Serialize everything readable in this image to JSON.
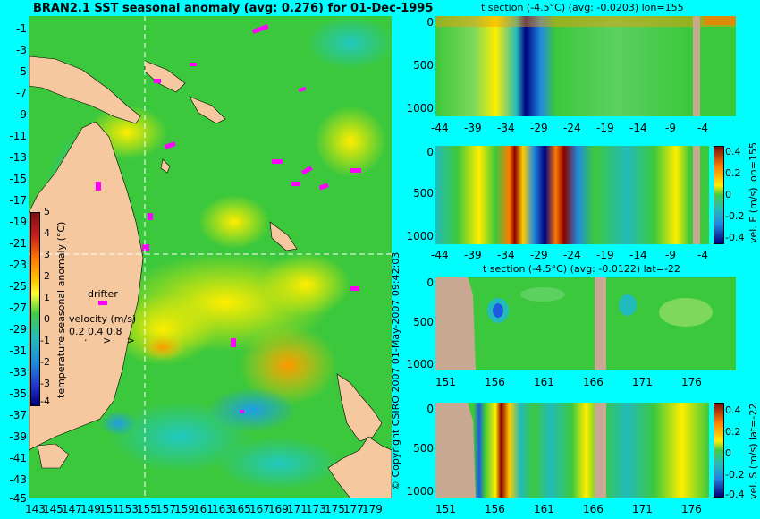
{
  "map": {
    "title": "BRAN2.1 SST seasonal anomaly (avg: 0.276) for 01-Dec-1995",
    "lat_ticks": [
      "-1",
      "-3",
      "-5",
      "-7",
      "-9",
      "-11",
      "-13",
      "-15",
      "-17",
      "-19",
      "-21",
      "-23",
      "-25",
      "-27",
      "-29",
      "-31",
      "-33",
      "-35",
      "-37",
      "-39",
      "-41",
      "-43",
      "-45"
    ],
    "lon_ticks": [
      "143",
      "145",
      "147",
      "149",
      "151",
      "153",
      "155",
      "157",
      "159",
      "161",
      "163",
      "165",
      "167",
      "169",
      "171",
      "173",
      "175",
      "177",
      "179"
    ],
    "colorbar_label": "temperature seasonal anomaly (°C)",
    "colorbar_ticks": [
      "5",
      "4",
      "3",
      "2",
      "1",
      "0",
      "-1",
      "-2",
      "-3",
      "-4"
    ],
    "drifter_label": "drifter",
    "velocity_label": "velocity (m/s)",
    "velocity_scale": "0.2 0.4 0.8"
  },
  "copyright": "© Copyright CSIRO 2007  01-May-2007 09:42:03",
  "panels": {
    "p1": {
      "title": "t section (-4.5°C) (avg: -0.0203) lon=155",
      "y_ticks": [
        "0",
        "500",
        "1000"
      ],
      "x_ticks": [
        "-44",
        "-39",
        "-34",
        "-29",
        "-24",
        "-19",
        "-14",
        "-9",
        "-4"
      ]
    },
    "p2": {
      "y_ticks": [
        "0",
        "500",
        "1000"
      ],
      "x_ticks": [
        "-44",
        "-39",
        "-34",
        "-29",
        "-24",
        "-19",
        "-14",
        "-9",
        "-4"
      ],
      "cb_ticks": [
        "0.4",
        "0.2",
        "0",
        "-0.2",
        "-0.4"
      ],
      "cb_label": "vel. E (m/s) lon=155"
    },
    "p3": {
      "title": "t section (-4.5°C) (avg: -0.0122) lat=-22",
      "y_ticks": [
        "0",
        "500",
        "1000"
      ],
      "x_ticks": [
        "151",
        "156",
        "161",
        "166",
        "171",
        "176"
      ]
    },
    "p4": {
      "y_ticks": [
        "0",
        "500",
        "1000"
      ],
      "x_ticks": [
        "151",
        "156",
        "161",
        "166",
        "171",
        "176"
      ],
      "cb_ticks": [
        "0.4",
        "0.2",
        "0",
        "-0.2",
        "-0.4"
      ],
      "cb_label": "vel. S (m/s) lat=-22"
    }
  },
  "chart_data": [
    {
      "type": "heatmap",
      "title": "BRAN2.1 SST seasonal anomaly (avg: 0.276) for 01-Dec-1995",
      "xlim": [
        142,
        180
      ],
      "ylim": [
        -45,
        0
      ],
      "zlim": [
        -4,
        5
      ],
      "section_lines": {
        "lon": 155,
        "lat": -22
      }
    },
    {
      "type": "heatmap",
      "title": "t section (-4.5°C) (avg: -0.0203) lon=155",
      "xlim": [
        -45,
        0
      ],
      "ylim": [
        1050,
        0
      ]
    },
    {
      "type": "heatmap",
      "xlim": [
        -45,
        0
      ],
      "ylim": [
        1050,
        0
      ],
      "zlim": [
        -0.4,
        0.4
      ],
      "colorbar_label": "vel. E (m/s) lon=155"
    },
    {
      "type": "heatmap",
      "title": "t section (-4.5°C) (avg: -0.0122) lat=-22",
      "xlim": [
        150,
        180
      ],
      "ylim": [
        1050,
        0
      ]
    },
    {
      "type": "heatmap",
      "xlim": [
        150,
        180
      ],
      "ylim": [
        1050,
        0
      ],
      "zlim": [
        -0.4,
        0.4
      ],
      "colorbar_label": "vel. S (m/s) lat=-22"
    }
  ]
}
